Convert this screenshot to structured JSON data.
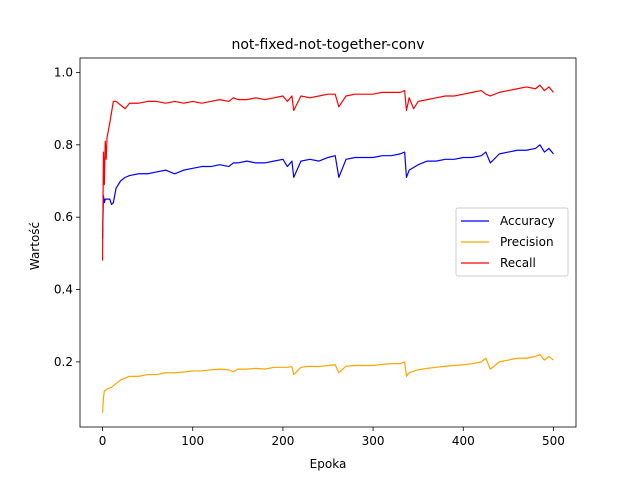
{
  "chart_data": {
    "type": "line",
    "title": "not-fixed-not-together-conv",
    "xlabel": "Epoka",
    "ylabel": "Wartość",
    "xlim": [
      -25,
      525
    ],
    "ylim": [
      0.02,
      1.04
    ],
    "xticks": [
      0,
      100,
      200,
      300,
      400,
      500
    ],
    "yticks": [
      0.2,
      0.4,
      0.6,
      0.8,
      1.0
    ],
    "xtick_labels": [
      "0",
      "100",
      "200",
      "300",
      "400",
      "500"
    ],
    "ytick_labels": [
      "0.2",
      "0.4",
      "0.6",
      "0.8",
      "1.0"
    ],
    "grid": false,
    "legend_position": "center-right",
    "series": [
      {
        "name": "Accuracy",
        "color": "#0000ff",
        "x": [
          0,
          1,
          2,
          3,
          5,
          8,
          10,
          12,
          15,
          20,
          25,
          30,
          40,
          50,
          60,
          70,
          80,
          90,
          100,
          110,
          120,
          130,
          140,
          145,
          150,
          160,
          170,
          180,
          190,
          200,
          205,
          210,
          212,
          220,
          230,
          240,
          250,
          258,
          262,
          270,
          280,
          290,
          300,
          310,
          320,
          330,
          335,
          337,
          340,
          350,
          360,
          370,
          380,
          390,
          400,
          410,
          420,
          425,
          430,
          440,
          450,
          460,
          470,
          480,
          485,
          490,
          495,
          500
        ],
        "values": [
          0.54,
          0.66,
          0.64,
          0.65,
          0.65,
          0.65,
          0.635,
          0.64,
          0.68,
          0.7,
          0.71,
          0.715,
          0.72,
          0.72,
          0.725,
          0.73,
          0.72,
          0.73,
          0.735,
          0.74,
          0.74,
          0.745,
          0.74,
          0.75,
          0.75,
          0.755,
          0.75,
          0.75,
          0.755,
          0.76,
          0.74,
          0.755,
          0.71,
          0.755,
          0.76,
          0.755,
          0.765,
          0.77,
          0.71,
          0.76,
          0.765,
          0.765,
          0.765,
          0.77,
          0.77,
          0.775,
          0.78,
          0.71,
          0.73,
          0.745,
          0.755,
          0.755,
          0.76,
          0.76,
          0.765,
          0.765,
          0.77,
          0.78,
          0.75,
          0.775,
          0.78,
          0.785,
          0.785,
          0.79,
          0.8,
          0.78,
          0.79,
          0.775
        ]
      },
      {
        "name": "Precision",
        "color": "#ffa500",
        "x": [
          0,
          1,
          2,
          3,
          5,
          10,
          15,
          20,
          25,
          30,
          40,
          50,
          60,
          70,
          80,
          90,
          100,
          110,
          120,
          130,
          140,
          145,
          150,
          160,
          170,
          180,
          190,
          200,
          205,
          210,
          212,
          220,
          230,
          240,
          250,
          258,
          262,
          270,
          280,
          290,
          300,
          310,
          320,
          330,
          335,
          337,
          340,
          350,
          360,
          370,
          380,
          390,
          400,
          410,
          420,
          425,
          430,
          440,
          450,
          460,
          470,
          480,
          485,
          490,
          495,
          500
        ],
        "values": [
          0.06,
          0.1,
          0.12,
          0.12,
          0.125,
          0.13,
          0.14,
          0.15,
          0.155,
          0.16,
          0.16,
          0.165,
          0.165,
          0.17,
          0.17,
          0.172,
          0.175,
          0.175,
          0.178,
          0.18,
          0.178,
          0.172,
          0.18,
          0.18,
          0.182,
          0.18,
          0.185,
          0.185,
          0.185,
          0.187,
          0.165,
          0.185,
          0.188,
          0.187,
          0.19,
          0.192,
          0.17,
          0.188,
          0.19,
          0.19,
          0.19,
          0.193,
          0.195,
          0.195,
          0.2,
          0.16,
          0.17,
          0.178,
          0.182,
          0.185,
          0.188,
          0.19,
          0.192,
          0.195,
          0.2,
          0.21,
          0.18,
          0.2,
          0.205,
          0.21,
          0.21,
          0.215,
          0.22,
          0.205,
          0.215,
          0.205
        ]
      },
      {
        "name": "Recall",
        "color": "#ff0000",
        "x": [
          0,
          1,
          2,
          3,
          4,
          5,
          8,
          10,
          12,
          15,
          20,
          25,
          30,
          40,
          50,
          60,
          70,
          80,
          90,
          100,
          110,
          120,
          130,
          140,
          145,
          150,
          160,
          170,
          180,
          190,
          200,
          205,
          210,
          212,
          220,
          230,
          240,
          250,
          258,
          262,
          270,
          280,
          290,
          300,
          310,
          320,
          330,
          335,
          337,
          340,
          345,
          350,
          360,
          370,
          380,
          390,
          400,
          410,
          420,
          425,
          430,
          440,
          450,
          460,
          470,
          480,
          485,
          490,
          495,
          500
        ],
        "values": [
          0.48,
          0.78,
          0.69,
          0.81,
          0.76,
          0.82,
          0.86,
          0.89,
          0.92,
          0.92,
          0.91,
          0.9,
          0.915,
          0.915,
          0.92,
          0.92,
          0.915,
          0.92,
          0.915,
          0.92,
          0.915,
          0.92,
          0.925,
          0.92,
          0.93,
          0.925,
          0.925,
          0.93,
          0.925,
          0.93,
          0.935,
          0.92,
          0.935,
          0.895,
          0.935,
          0.93,
          0.935,
          0.94,
          0.94,
          0.905,
          0.935,
          0.94,
          0.94,
          0.94,
          0.945,
          0.945,
          0.945,
          0.95,
          0.895,
          0.93,
          0.9,
          0.92,
          0.925,
          0.93,
          0.935,
          0.935,
          0.94,
          0.945,
          0.95,
          0.94,
          0.935,
          0.945,
          0.95,
          0.955,
          0.96,
          0.955,
          0.965,
          0.95,
          0.96,
          0.945
        ]
      }
    ]
  }
}
